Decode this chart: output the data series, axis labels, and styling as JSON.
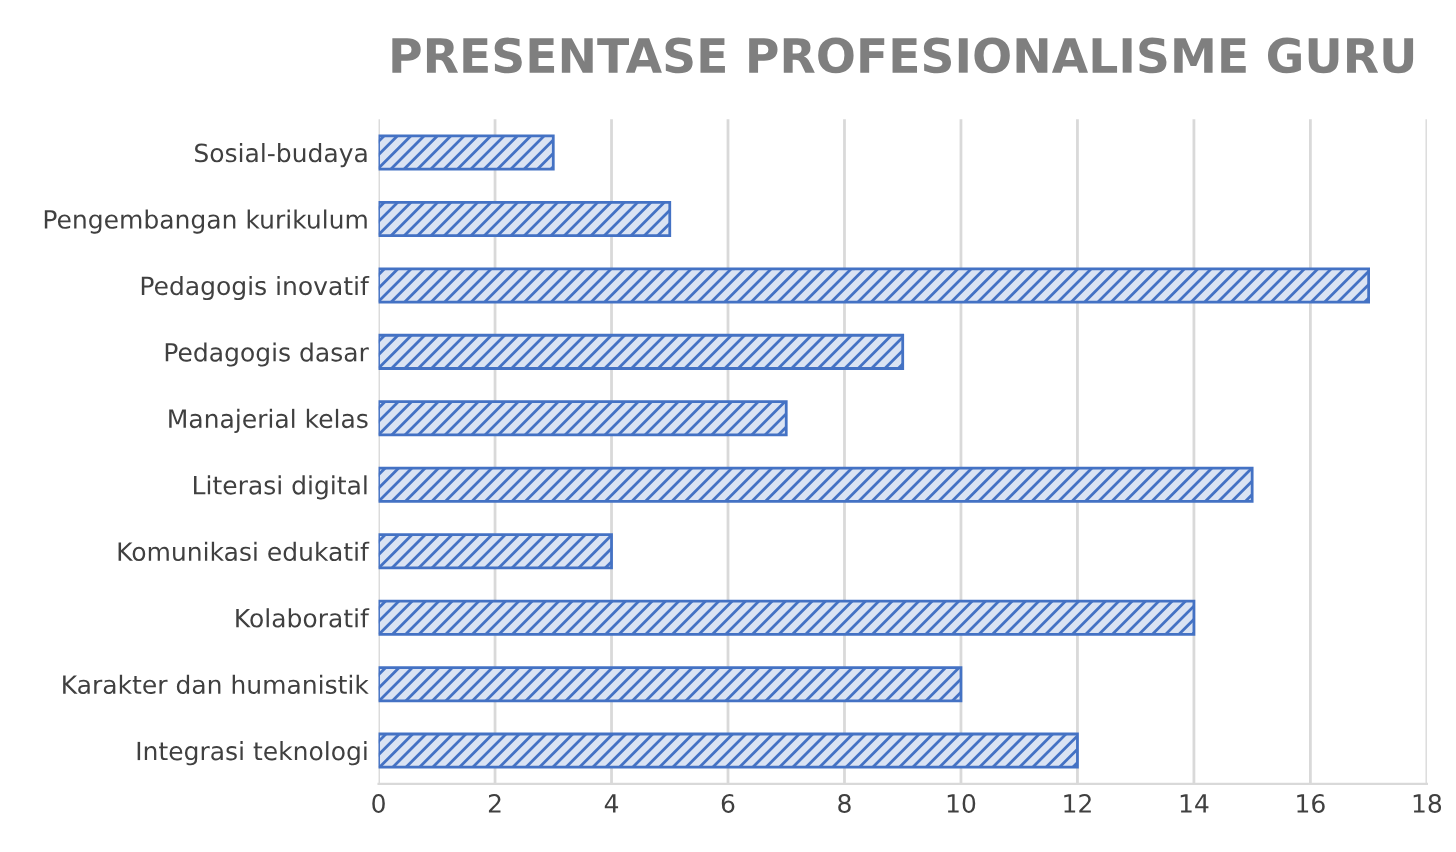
{
  "chart_data": {
    "type": "bar",
    "orientation": "horizontal",
    "title": "PRESENTASE PROFESIONALISME GURU",
    "categories": [
      "Sosial-budaya",
      "Pengembangan kurikulum",
      "Pedagogis inovatif",
      "Pedagogis dasar",
      "Manajerial kelas",
      "Literasi digital",
      "Komunikasi edukatif",
      "Kolaboratif",
      "Karakter dan humanistik",
      "Integrasi teknologi"
    ],
    "values": [
      3,
      5,
      17,
      9,
      7,
      15,
      4,
      14,
      10,
      12
    ],
    "color": "#4472c4",
    "xlim": [
      0,
      18
    ],
    "xticks": [
      0,
      2,
      4,
      6,
      8,
      10,
      12,
      14,
      16,
      18
    ],
    "grid": "x"
  }
}
